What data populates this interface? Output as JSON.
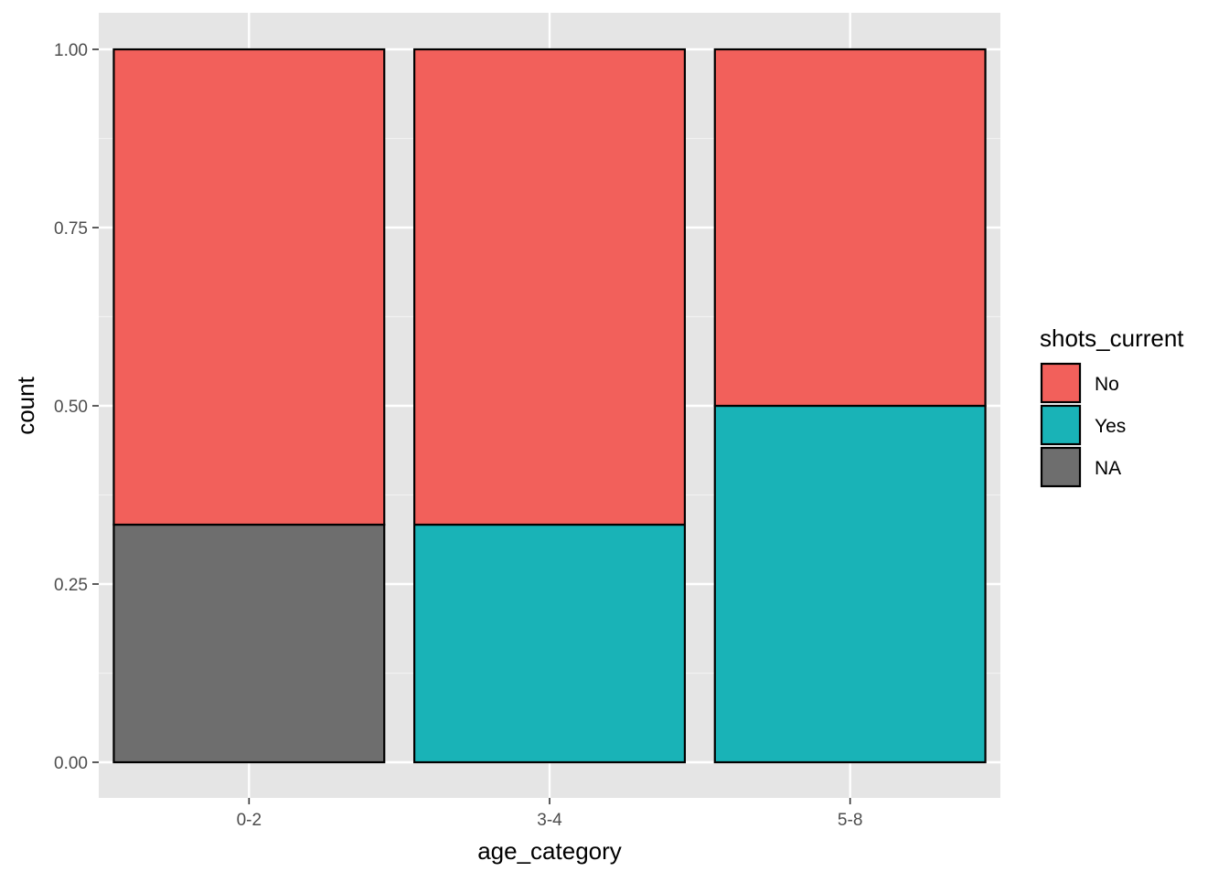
{
  "chart_data": {
    "type": "bar",
    "stacked": true,
    "position": "fill",
    "categories": [
      "0-2",
      "3-4",
      "5-8"
    ],
    "series": [
      {
        "name": "NA",
        "color": "#6e6e6e",
        "values": [
          0.3333,
          0,
          0
        ]
      },
      {
        "name": "Yes",
        "color": "#19b3b7",
        "values": [
          0,
          0.3333,
          0.5
        ]
      },
      {
        "name": "No",
        "color": "#f2605b",
        "values": [
          0.6667,
          0.6667,
          0.5
        ]
      }
    ],
    "xlabel": "age_category",
    "ylabel": "count",
    "ylim": [
      0,
      1
    ],
    "yticks": [
      "0.00",
      "0.25",
      "0.50",
      "0.75",
      "1.00"
    ],
    "ytick_values": [
      0,
      0.25,
      0.5,
      0.75,
      1.0
    ],
    "grid": true,
    "panel_background": "#e5e5e5",
    "legend": {
      "title": "shots_current",
      "position": "right",
      "entries": [
        {
          "label": "No",
          "color": "#f2605b"
        },
        {
          "label": "Yes",
          "color": "#19b3b7"
        },
        {
          "label": "NA",
          "color": "#6e6e6e"
        }
      ]
    }
  }
}
